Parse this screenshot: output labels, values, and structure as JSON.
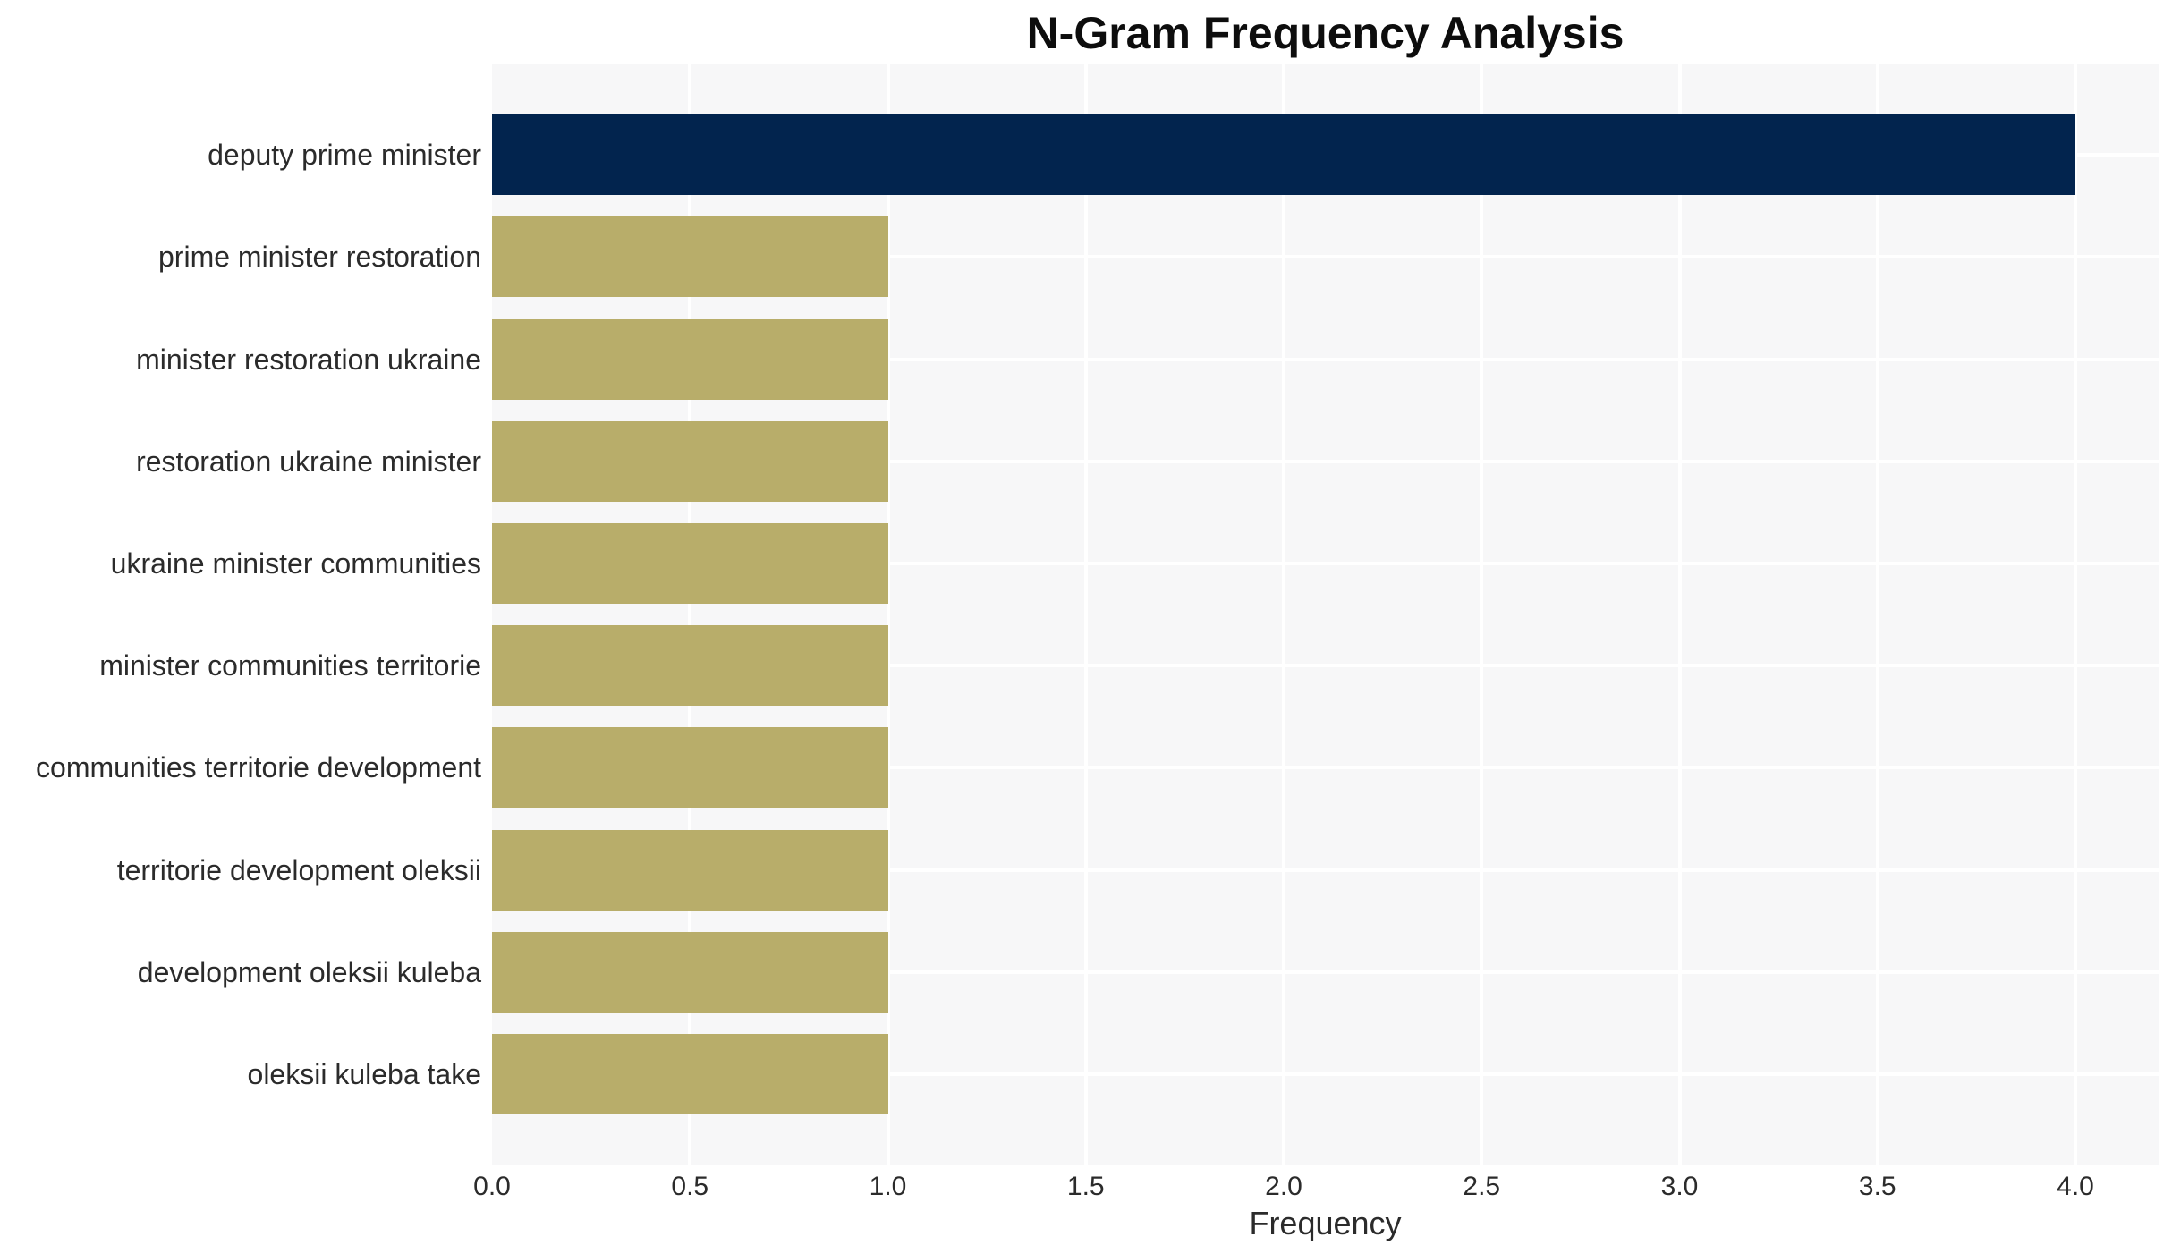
{
  "chart_data": {
    "type": "bar",
    "orientation": "horizontal",
    "title": "N-Gram Frequency Analysis",
    "xlabel": "Frequency",
    "ylabel": "",
    "categories": [
      "deputy prime minister",
      "prime minister restoration",
      "minister restoration ukraine",
      "restoration ukraine minister",
      "ukraine minister communities",
      "minister communities territorie",
      "communities territorie development",
      "territorie development oleksii",
      "development oleksii kuleba",
      "oleksii kuleba take"
    ],
    "values": [
      4,
      1,
      1,
      1,
      1,
      1,
      1,
      1,
      1,
      1
    ],
    "bar_colors": [
      "#02244e",
      "#b8ad6a",
      "#b8ad6a",
      "#b8ad6a",
      "#b8ad6a",
      "#b8ad6a",
      "#b8ad6a",
      "#b8ad6a",
      "#b8ad6a",
      "#b8ad6a"
    ],
    "xticks": [
      "0.0",
      "0.5",
      "1.0",
      "1.5",
      "2.0",
      "2.5",
      "3.0",
      "3.5",
      "4.0"
    ],
    "xtick_values": [
      0,
      0.5,
      1,
      1.5,
      2,
      2.5,
      3,
      3.5,
      4
    ],
    "xlim": [
      0,
      4.2
    ],
    "grid": "on",
    "legend": "none",
    "colors": {
      "highlight_bar": "#02244e",
      "default_bar": "#b8ad6a",
      "plot_background": "#f7f7f8",
      "gridline": "#ffffff",
      "text": "#2b2b2b",
      "title_text": "#0d0d0d"
    }
  }
}
